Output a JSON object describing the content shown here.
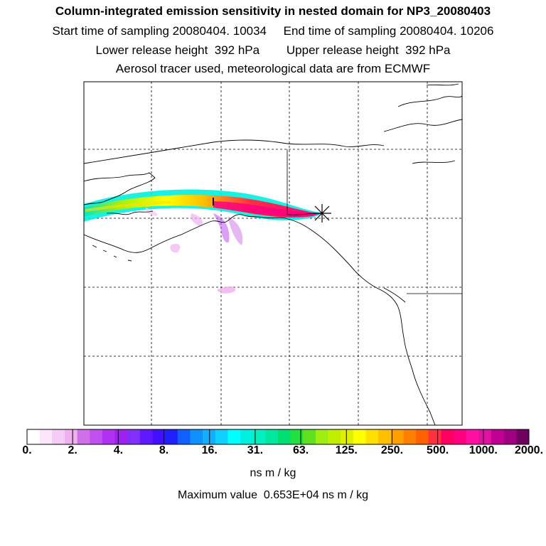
{
  "title": "Column-integrated emission sensitivity in nested domain for NP3_20080403",
  "sampling_line": "Start time of sampling 20080404. 10034     End time of sampling 20080404. 10206",
  "release_line": "Lower release height  392 hPa        Upper release height  392 hPa",
  "tracer_line": "Aerosol tracer used, meteorological data are from ECMWF",
  "colorbar": {
    "ticks": [
      "0.",
      "2.",
      "4.",
      "8.",
      "16.",
      "31.",
      "63.",
      "125.",
      "250.",
      "500.",
      "1000.",
      "2000."
    ],
    "colors": [
      "#ffffff",
      "#fbe6fb",
      "#f5ccf5",
      "#eeb0ee",
      "#d070e8",
      "#c050f0",
      "#b030f4",
      "#a020f0",
      "#8030f8",
      "#6018ff",
      "#4010ff",
      "#2020ff",
      "#1060ff",
      "#1090ff",
      "#10b0ff",
      "#10d0ff",
      "#00ffff",
      "#00f0e0",
      "#00f0c0",
      "#00e8a0",
      "#00e070",
      "#20e040",
      "#60e020",
      "#a0ee10",
      "#c0f000",
      "#e0f000",
      "#ffff00",
      "#ffe000",
      "#ffc000",
      "#ffa000",
      "#ff8000",
      "#ff6000",
      "#ff3040",
      "#ff0060",
      "#ff0080",
      "#ff10a0",
      "#e010a0",
      "#c00090",
      "#a00080",
      "#700060"
    ]
  },
  "units": "ns m / kg",
  "max_value_line": "Maximum value  0.653E+04 ns m / kg"
}
